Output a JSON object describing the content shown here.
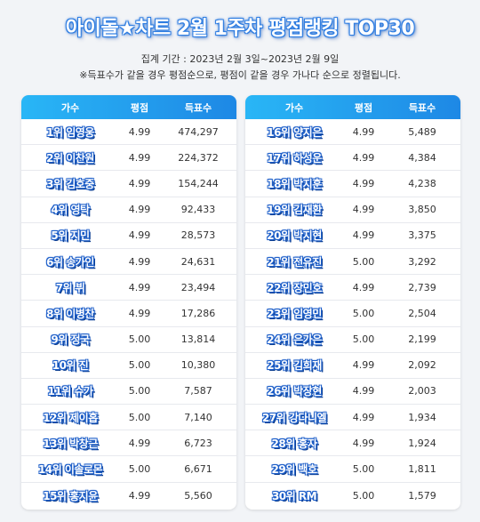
{
  "title": "아이돌★차트 2월 1주차 평점랭킹 TOP30",
  "period": "집계 기간 : 2023년 2월 3일~2023년 2월 9일",
  "note": "※득표수가 같을 경우 평점순으로, 평점이 같을 경우 가나다 순으로 정렬됩니다.",
  "headers": {
    "singer": "가수",
    "score": "평점",
    "votes": "득표수"
  },
  "left": [
    {
      "name": "1위 임영웅",
      "score": "4.99",
      "votes": "474,297"
    },
    {
      "name": "2위 이찬원",
      "score": "4.99",
      "votes": "224,372"
    },
    {
      "name": "3위 김호중",
      "score": "4.99",
      "votes": "154,244"
    },
    {
      "name": "4위 영탁",
      "score": "4.99",
      "votes": "92,433"
    },
    {
      "name": "5위 지민",
      "score": "4.99",
      "votes": "28,573"
    },
    {
      "name": "6위 송가인",
      "score": "4.99",
      "votes": "24,631"
    },
    {
      "name": "7위 뷔",
      "score": "4.99",
      "votes": "23,494"
    },
    {
      "name": "8위 이병찬",
      "score": "4.99",
      "votes": "17,286"
    },
    {
      "name": "9위 정국",
      "score": "5.00",
      "votes": "13,814"
    },
    {
      "name": "10위 진",
      "score": "5.00",
      "votes": "10,380"
    },
    {
      "name": "11위 슈가",
      "score": "5.00",
      "votes": "7,587"
    },
    {
      "name": "12위 제이홉",
      "score": "5.00",
      "votes": "7,140"
    },
    {
      "name": "13위 박창근",
      "score": "4.99",
      "votes": "6,723"
    },
    {
      "name": "14위 이솔로몬",
      "score": "5.00",
      "votes": "6,671"
    },
    {
      "name": "15위 홍지윤",
      "score": "4.99",
      "votes": "5,560"
    }
  ],
  "right": [
    {
      "name": "16위 양지은",
      "score": "4.99",
      "votes": "5,489"
    },
    {
      "name": "17위 하성운",
      "score": "4.99",
      "votes": "4,384"
    },
    {
      "name": "18위 박지훈",
      "score": "4.99",
      "votes": "4,238"
    },
    {
      "name": "19위 김재환",
      "score": "4.99",
      "votes": "3,850"
    },
    {
      "name": "20위 박지현",
      "score": "4.99",
      "votes": "3,375"
    },
    {
      "name": "21위 전유진",
      "score": "5.00",
      "votes": "3,292"
    },
    {
      "name": "22위 장민호",
      "score": "4.99",
      "votes": "2,739"
    },
    {
      "name": "23위 임영민",
      "score": "5.00",
      "votes": "2,504"
    },
    {
      "name": "24위 은가은",
      "score": "5.00",
      "votes": "2,199"
    },
    {
      "name": "25위 김희재",
      "score": "4.99",
      "votes": "2,092"
    },
    {
      "name": "26위 박장현",
      "score": "4.99",
      "votes": "2,003"
    },
    {
      "name": "27위 강다니엘",
      "score": "4.99",
      "votes": "1,934"
    },
    {
      "name": "28위 홍자",
      "score": "4.99",
      "votes": "1,924"
    },
    {
      "name": "29위 백호",
      "score": "5.00",
      "votes": "1,811"
    },
    {
      "name": "30위 RM",
      "score": "5.00",
      "votes": "1,579"
    }
  ]
}
